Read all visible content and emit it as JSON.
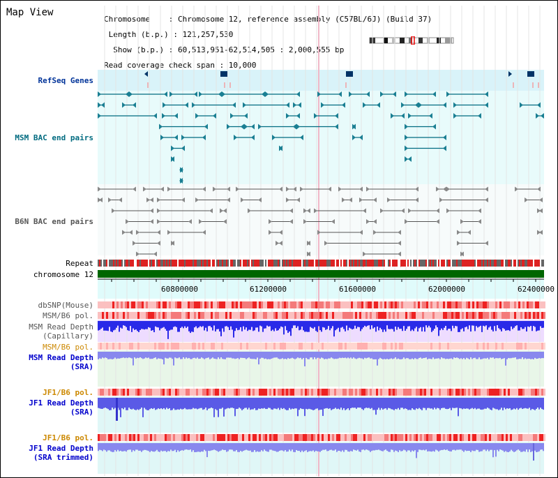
{
  "header": {
    "title": "Map View",
    "info_lines": [
      "Chromosome    : Chromosome 12, reference assembly (C57BL/6J) (Build 37)",
      " Length (b.p.) : 121,257,530",
      "  Show (b.p.) : 60,513,951-62,514,505 : 2,000,555 bp",
      "Read coverage check span : 10,000"
    ]
  },
  "tracks": {
    "refseq": "RefSeq Genes",
    "msm_bac": "MSM BAC end pairs",
    "b6n_bac": "B6N BAC end pairs",
    "repeat": "Repeat",
    "chromosome": "chromosome 12",
    "dbsnp": "dbSNP(Mouse)",
    "msm_b6_pol": "MSM/B6 pol.",
    "msm_read_depth_cap": "MSM Read Depth\n(Capillary)",
    "msm_b6_pol_2": "MSM/B6 pol.",
    "msm_read_depth_sra": "MSM Read Depth\n(SRA)",
    "jf1_b6_pol": "JF1/B6 pol.",
    "jf1_read_depth_sra": "JF1 Read Depth\n(SRA)",
    "jf1_b6_pol_2": "JF1/B6 pol.",
    "jf1_read_depth_trim": "JF1 Read Depth\n(SRA trimmed)"
  },
  "axis": {
    "ticks": [
      "60800000",
      "61200000",
      "61600000",
      "62000000",
      "62400000"
    ]
  },
  "colors": {
    "refseq_bg": "#d9f3f9",
    "bac_bg": "#e8fbfb",
    "chromosome": "#006600",
    "repeat_red": "#dd2222",
    "repeat_gray": "#666666",
    "depth_blue": "#2a2ae8",
    "depth_light": "#8888ee"
  }
}
